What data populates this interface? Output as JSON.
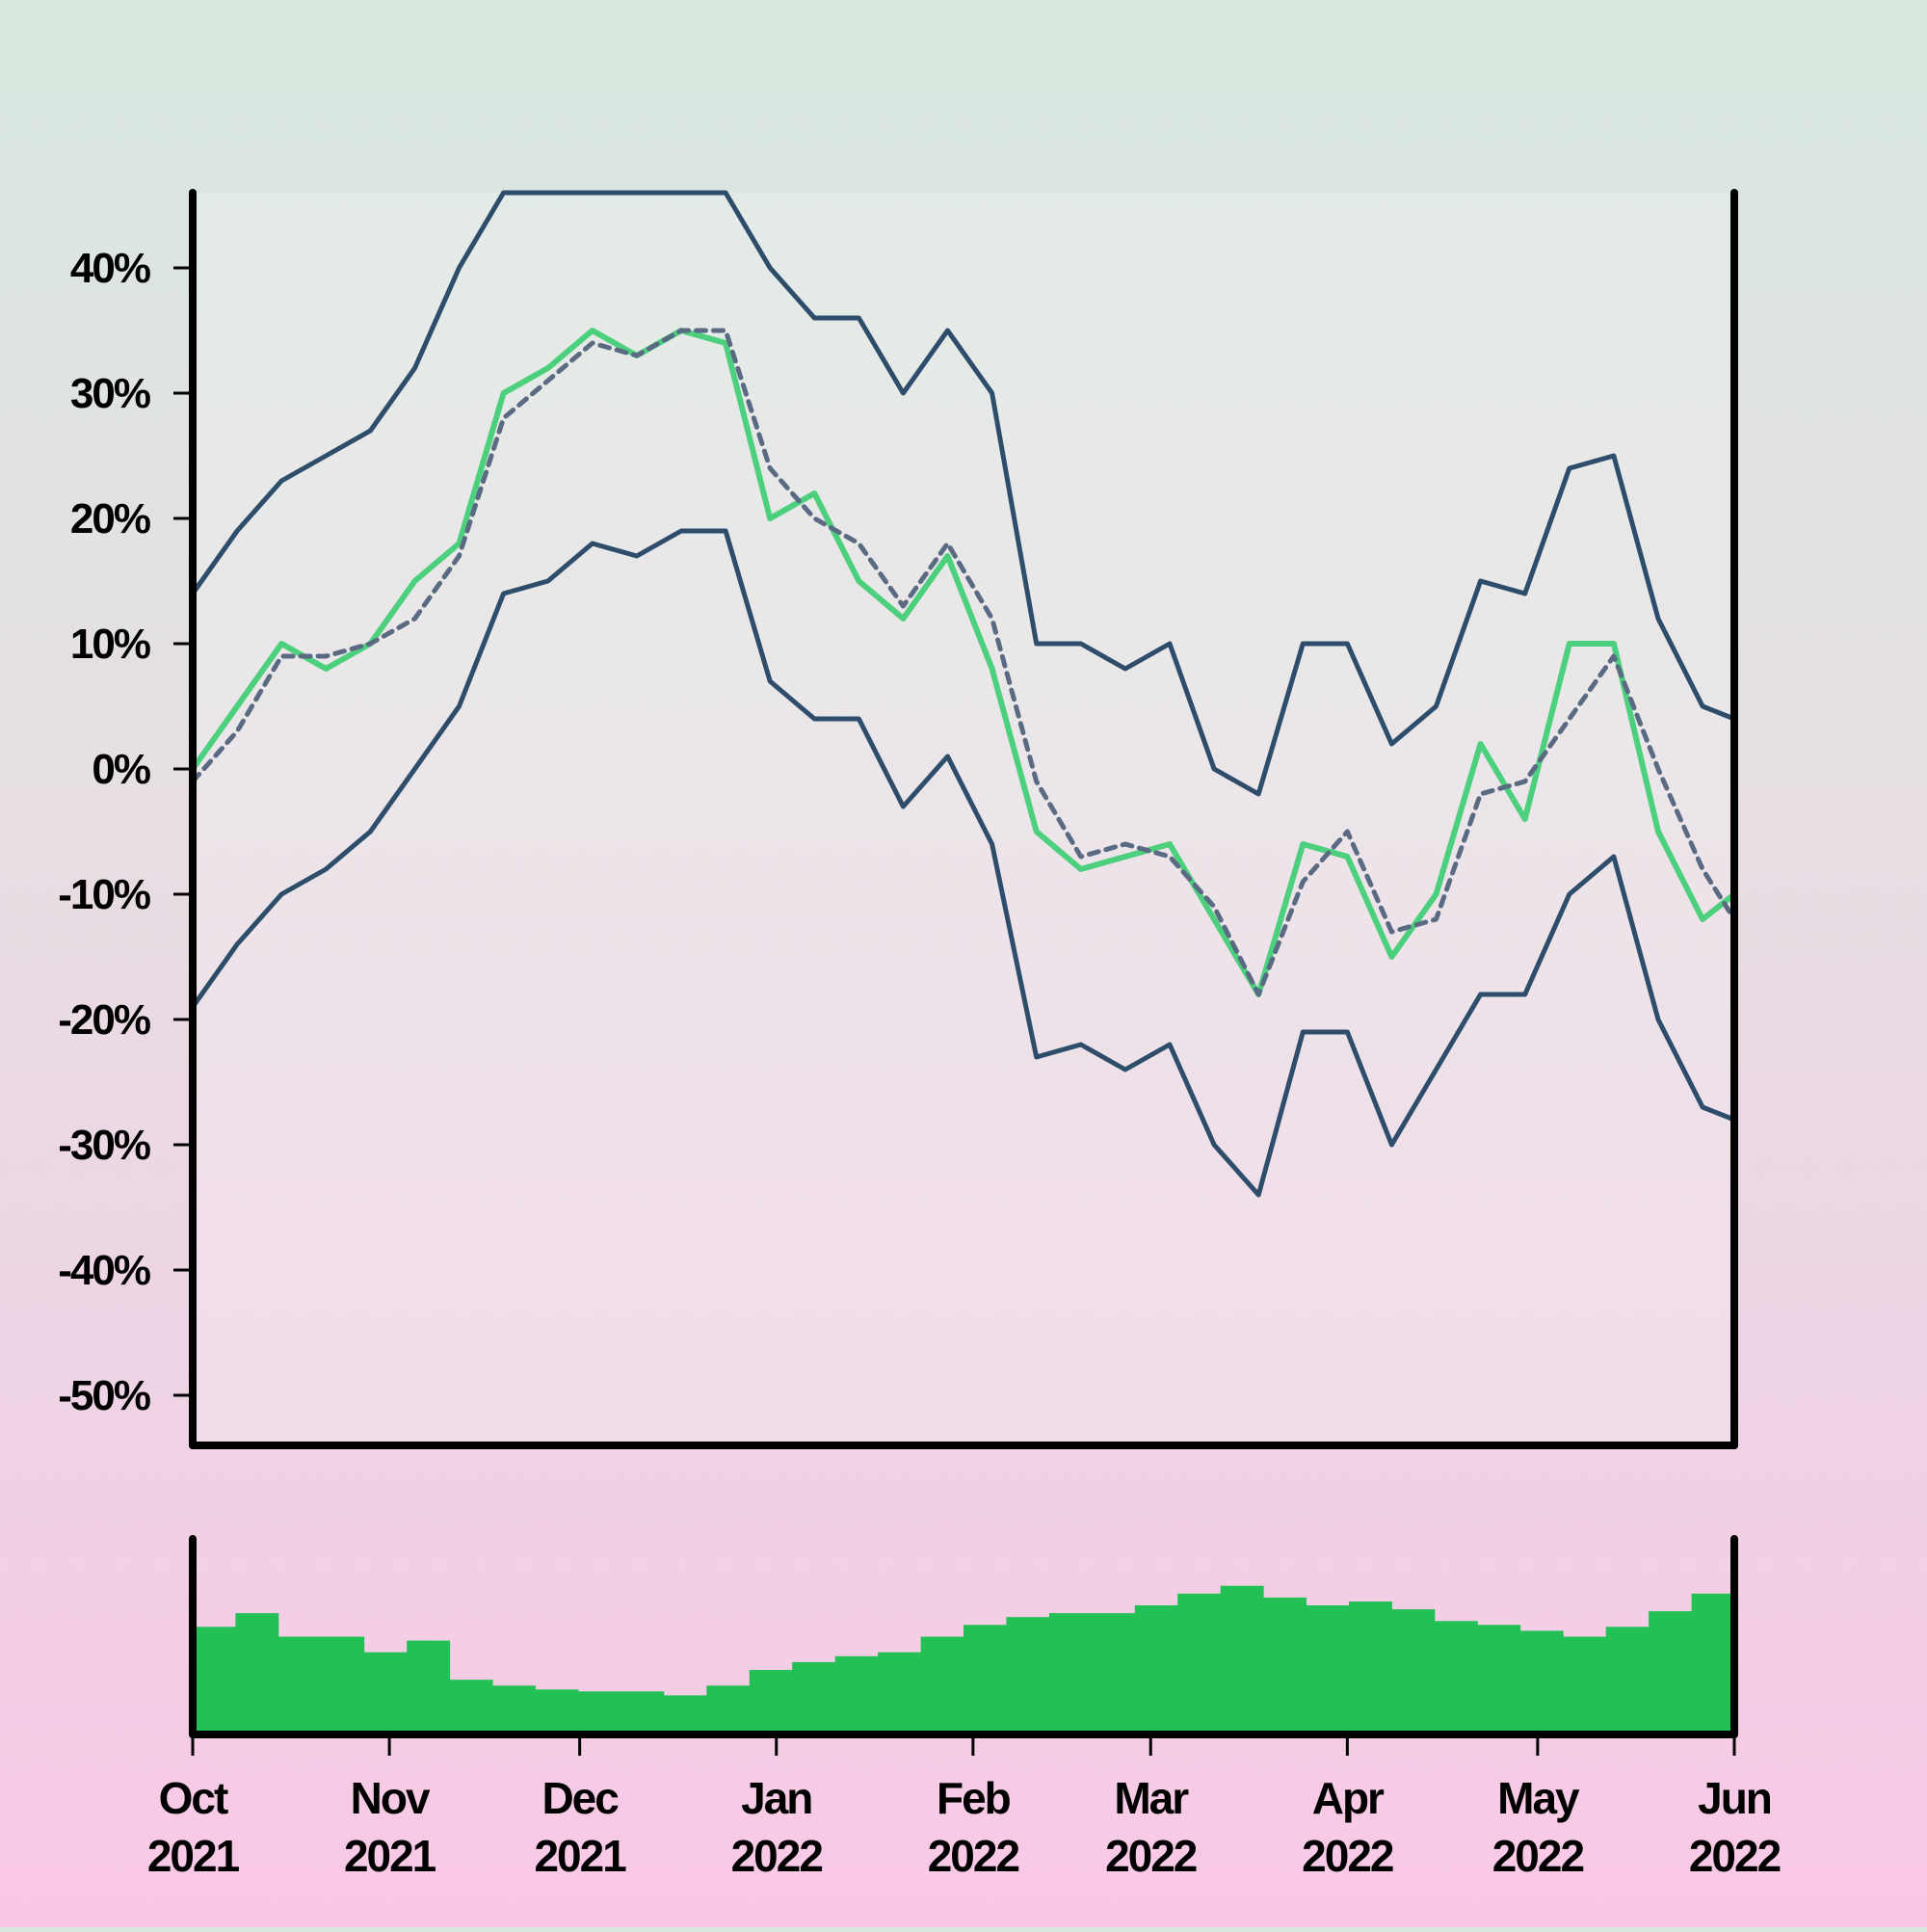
{
  "chart_data": [
    {
      "type": "line",
      "title": "",
      "xlabel": "",
      "ylabel": "",
      "ylim": [
        -0.54,
        0.46
      ],
      "xlim": [
        "2021-10-01",
        "2022-06-01"
      ],
      "y_tick_values": [
        -0.5,
        -0.4,
        -0.3,
        -0.2,
        -0.1,
        0.0,
        0.1,
        0.2,
        0.3,
        0.4
      ],
      "y_tick_labels": [
        "-50%",
        "-40%",
        "-30%",
        "-20%",
        "-10%",
        "0%",
        "10%",
        "20%",
        "30%",
        "40%"
      ],
      "grid": false,
      "legend": "none",
      "dates": [
        "2021-10-01",
        "2021-10-08",
        "2021-10-15",
        "2021-10-22",
        "2021-10-29",
        "2021-11-05",
        "2021-11-12",
        "2021-11-19",
        "2021-11-26",
        "2021-12-03",
        "2021-12-10",
        "2021-12-17",
        "2021-12-24",
        "2021-12-31",
        "2022-01-07",
        "2022-01-14",
        "2022-01-21",
        "2022-01-28",
        "2022-02-04",
        "2022-02-11",
        "2022-02-18",
        "2022-02-25",
        "2022-03-04",
        "2022-03-11",
        "2022-03-18",
        "2022-03-25",
        "2022-04-01",
        "2022-04-08",
        "2022-04-15",
        "2022-04-22",
        "2022-04-29",
        "2022-05-06",
        "2022-05-13",
        "2022-05-20",
        "2022-05-27",
        "2022-06-01"
      ],
      "series": [
        {
          "role": "price",
          "color": "#4cd07d",
          "style": "solid",
          "values": [
            0.0,
            0.05,
            0.1,
            0.08,
            0.1,
            0.15,
            0.18,
            0.3,
            0.32,
            0.35,
            0.33,
            0.35,
            0.34,
            0.2,
            0.22,
            0.15,
            0.12,
            0.17,
            0.08,
            -0.05,
            -0.08,
            -0.07,
            -0.06,
            -0.12,
            -0.18,
            -0.06,
            -0.07,
            -0.15,
            -0.1,
            0.02,
            -0.04,
            0.1,
            0.1,
            -0.05,
            -0.12,
            -0.1
          ]
        },
        {
          "role": "moving-average",
          "color": "#5a6a82",
          "style": "dashed",
          "values": [
            -0.01,
            0.03,
            0.09,
            0.09,
            0.1,
            0.12,
            0.17,
            0.28,
            0.31,
            0.34,
            0.33,
            0.35,
            0.35,
            0.24,
            0.2,
            0.18,
            0.13,
            0.18,
            0.12,
            -0.01,
            -0.07,
            -0.06,
            -0.07,
            -0.11,
            -0.18,
            -0.09,
            -0.05,
            -0.13,
            -0.12,
            -0.02,
            -0.01,
            0.04,
            0.09,
            0.0,
            -0.08,
            -0.12
          ]
        },
        {
          "role": "upper-band",
          "color": "#2e4d6b",
          "style": "solid",
          "values": [
            0.14,
            0.19,
            0.23,
            0.25,
            0.27,
            0.32,
            0.4,
            0.46,
            0.46,
            0.46,
            0.46,
            0.46,
            0.46,
            0.4,
            0.36,
            0.36,
            0.3,
            0.35,
            0.3,
            0.1,
            0.1,
            0.08,
            0.1,
            0.0,
            -0.02,
            0.1,
            0.1,
            0.02,
            0.05,
            0.15,
            0.14,
            0.24,
            0.25,
            0.12,
            0.05,
            0.04
          ]
        },
        {
          "role": "lower-band",
          "color": "#2e4d6b",
          "style": "solid",
          "values": [
            -0.19,
            -0.14,
            -0.1,
            -0.08,
            -0.05,
            0.0,
            0.05,
            0.14,
            0.15,
            0.18,
            0.17,
            0.19,
            0.19,
            0.07,
            0.04,
            0.04,
            -0.03,
            0.01,
            -0.06,
            -0.23,
            -0.22,
            -0.24,
            -0.22,
            -0.3,
            -0.34,
            -0.21,
            -0.21,
            -0.3,
            -0.24,
            -0.18,
            -0.18,
            -0.1,
            -0.07,
            -0.2,
            -0.27,
            -0.28
          ]
        }
      ]
    },
    {
      "type": "bar",
      "role": "volume",
      "color": "#22c055",
      "dates": [
        "2021-10-01",
        "2021-10-08",
        "2021-10-15",
        "2021-10-22",
        "2021-10-29",
        "2021-11-05",
        "2021-11-12",
        "2021-11-19",
        "2021-11-26",
        "2021-12-03",
        "2021-12-10",
        "2021-12-17",
        "2021-12-24",
        "2021-12-31",
        "2022-01-07",
        "2022-01-14",
        "2022-01-21",
        "2022-01-28",
        "2022-02-04",
        "2022-02-11",
        "2022-02-18",
        "2022-02-25",
        "2022-03-04",
        "2022-03-11",
        "2022-03-18",
        "2022-03-25",
        "2022-04-01",
        "2022-04-08",
        "2022-04-15",
        "2022-04-22",
        "2022-04-29",
        "2022-05-06",
        "2022-05-13",
        "2022-05-20",
        "2022-05-27",
        "2022-06-01"
      ],
      "values": [
        0.55,
        0.62,
        0.5,
        0.5,
        0.42,
        0.48,
        0.28,
        0.25,
        0.23,
        0.22,
        0.22,
        0.2,
        0.25,
        0.33,
        0.37,
        0.4,
        0.42,
        0.5,
        0.56,
        0.6,
        0.62,
        0.62,
        0.66,
        0.72,
        0.76,
        0.7,
        0.66,
        0.68,
        0.64,
        0.58,
        0.56,
        0.53,
        0.5,
        0.55,
        0.63,
        0.72
      ]
    }
  ],
  "x_ticks": [
    {
      "date": "2021-10-01",
      "month": "Oct",
      "year": "2021"
    },
    {
      "date": "2021-11-01",
      "month": "Nov",
      "year": "2021"
    },
    {
      "date": "2021-12-01",
      "month": "Dec",
      "year": "2021"
    },
    {
      "date": "2022-01-01",
      "month": "Jan",
      "year": "2022"
    },
    {
      "date": "2022-02-01",
      "month": "Feb",
      "year": "2022"
    },
    {
      "date": "2022-03-01",
      "month": "Mar",
      "year": "2022"
    },
    {
      "date": "2022-04-01",
      "month": "Apr",
      "year": "2022"
    },
    {
      "date": "2022-05-01",
      "month": "May",
      "year": "2022"
    },
    {
      "date": "2022-06-01",
      "month": "Jun",
      "year": "2022"
    }
  ]
}
